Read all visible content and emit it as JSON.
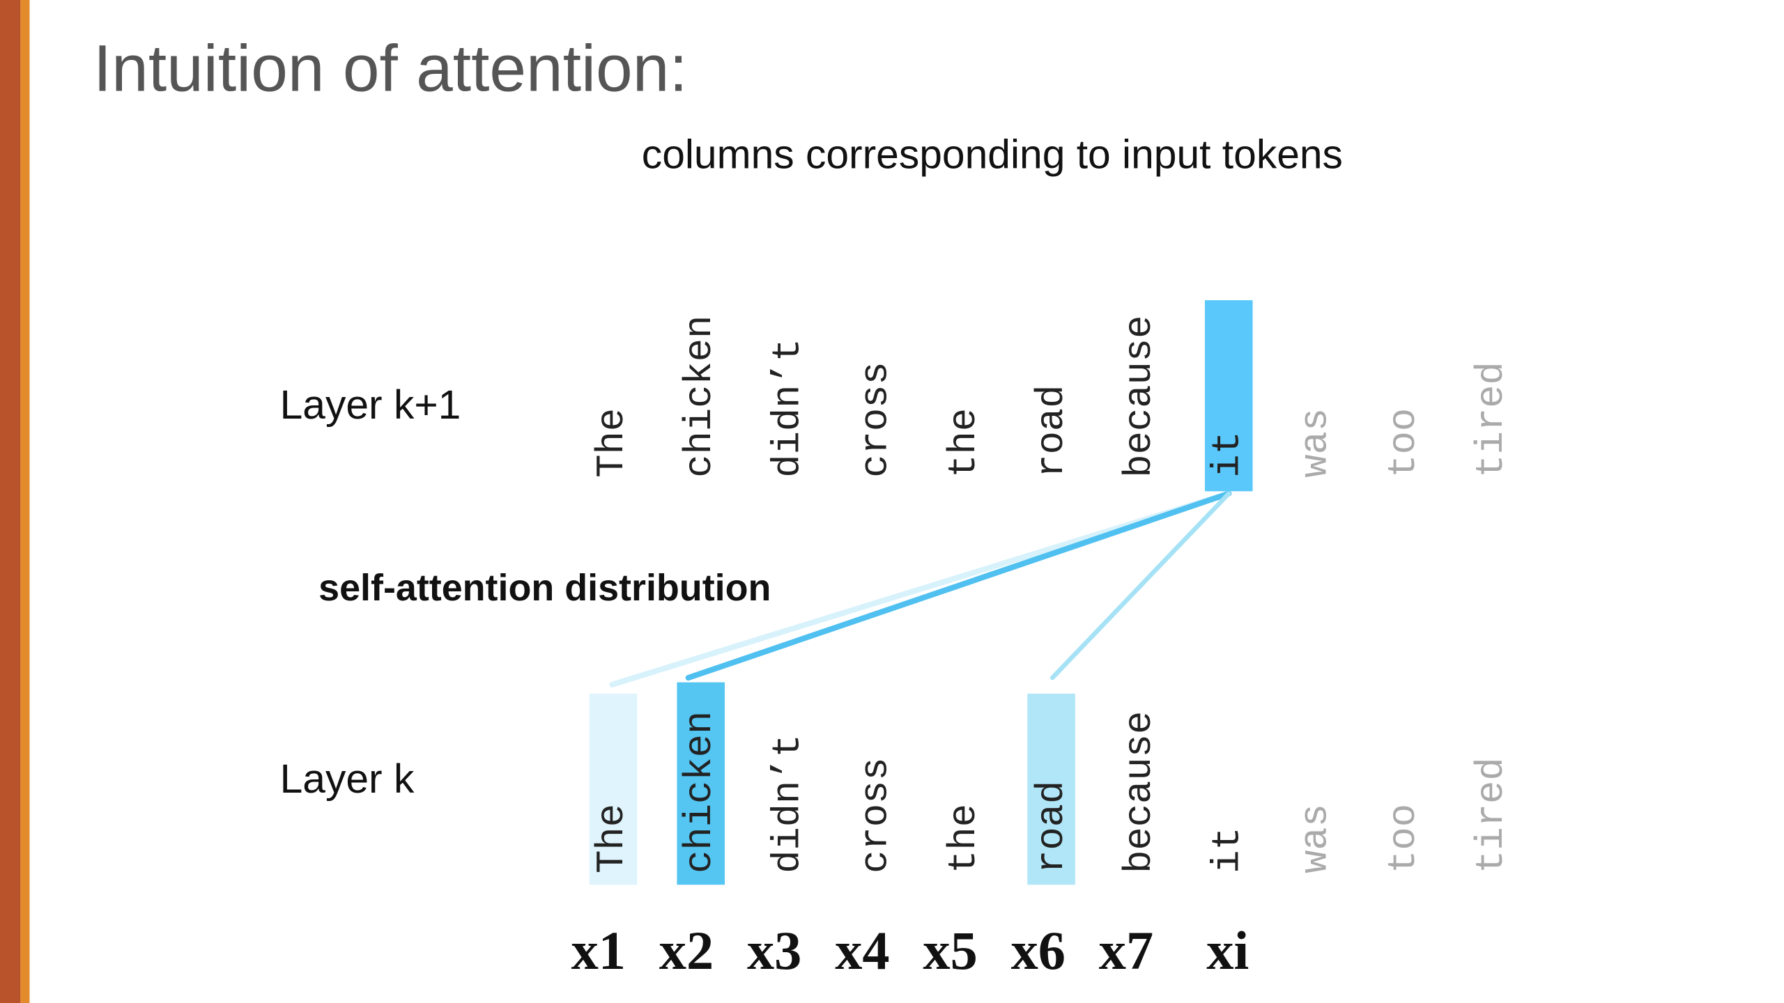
{
  "title": "Intuition of attention:",
  "caption": "columns corresponding to input tokens",
  "annotation": "self-attention distribution",
  "layers": [
    {
      "label": "Layer k+1",
      "tokens": [
        "The",
        "chicken",
        "didn’t",
        "cross",
        "the",
        "road",
        "because",
        "it",
        "was",
        "too",
        "tired"
      ]
    },
    {
      "label": "Layer k",
      "tokens": [
        "The",
        "chicken",
        "didn’t",
        "cross",
        "the",
        "road",
        "because",
        "it",
        "was",
        "too",
        "tired"
      ]
    }
  ],
  "positions": [
    "x1",
    "x2",
    "x3",
    "x4",
    "x5",
    "x6",
    "x7",
    "xi"
  ]
}
